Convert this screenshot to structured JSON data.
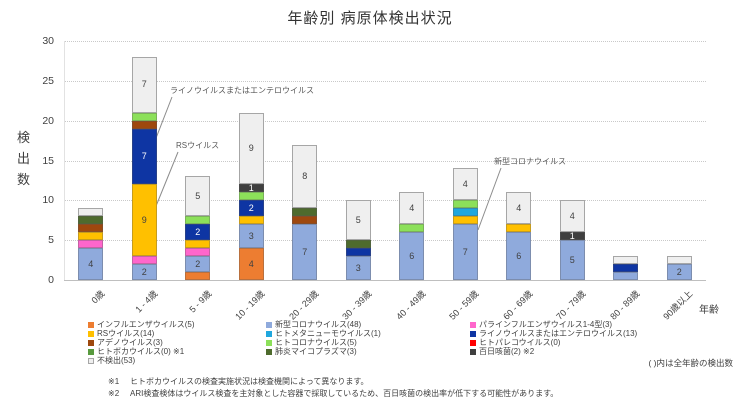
{
  "chart_data": {
    "type": "bar",
    "stacked": true,
    "title": "年齢別 病原体検出状況",
    "xlabel": "年齢",
    "ylabel": "検出数",
    "ylim": [
      0,
      30
    ],
    "yticks": [
      0,
      5,
      10,
      15,
      20,
      25,
      30
    ],
    "grid": "horizontal-dotted",
    "categories": [
      "0歳",
      "1 - 4歳",
      "5 - 9歳",
      "10 - 19歳",
      "20 - 29歳",
      "30 - 39歳",
      "40 - 49歳",
      "50 - 59歳",
      "60 - 69歳",
      "70 - 79歳",
      "80 - 89歳",
      "90歳以上"
    ],
    "series": [
      {
        "name": "インフルエンザウイルス",
        "color": "#ED7D31",
        "values": [
          0,
          0,
          1,
          4,
          0,
          0,
          0,
          0,
          0,
          0,
          0,
          0
        ]
      },
      {
        "name": "新型コロナウイルス",
        "color": "#8FAADC",
        "values": [
          4,
          2,
          2,
          3,
          7,
          3,
          6,
          7,
          6,
          5,
          1,
          2
        ]
      },
      {
        "name": "パラインフルエンザウイルス1-4型",
        "color": "#FF66CC",
        "values": [
          1,
          1,
          1,
          0,
          0,
          0,
          0,
          0,
          0,
          0,
          0,
          0
        ]
      },
      {
        "name": "RSウイルス",
        "color": "#FFC000",
        "values": [
          1,
          9,
          1,
          1,
          0,
          0,
          0,
          1,
          1,
          0,
          0,
          0
        ]
      },
      {
        "name": "ライノウイルスまたはエンテロウイルス",
        "color": "#0E35A3",
        "text": "#FFFFFF",
        "values": [
          0,
          7,
          2,
          2,
          0,
          1,
          0,
          0,
          0,
          0,
          1,
          0
        ]
      },
      {
        "name": "ヒトメタニューモウイルス",
        "color": "#20A7DE",
        "values": [
          0,
          0,
          0,
          0,
          0,
          0,
          0,
          1,
          0,
          0,
          0,
          0
        ]
      },
      {
        "name": "アデノウイルス",
        "color": "#9E480E",
        "text": "#FFFFFF",
        "values": [
          1,
          1,
          0,
          0,
          1,
          0,
          0,
          0,
          0,
          0,
          0,
          0
        ]
      },
      {
        "name": "ヒトコロナウイルス",
        "color": "#8CE05A",
        "values": [
          0,
          1,
          1,
          1,
          0,
          0,
          1,
          1,
          0,
          0,
          0,
          0
        ]
      },
      {
        "name": "肺炎マイコプラズマ",
        "color": "#4E6B2D",
        "text": "#FFFFFF",
        "values": [
          1,
          0,
          0,
          0,
          1,
          1,
          0,
          0,
          0,
          0,
          0,
          0
        ]
      },
      {
        "name": "百日咳菌",
        "color": "#3F3F3F",
        "text": "#FFFFFF",
        "always_label": true,
        "values": [
          0,
          0,
          0,
          1,
          0,
          0,
          0,
          0,
          0,
          1,
          0,
          0
        ]
      },
      {
        "name": "不検出",
        "color": "#EFEFEF",
        "border": "#A6A6A6",
        "values": [
          1,
          7,
          5,
          9,
          8,
          5,
          4,
          4,
          4,
          4,
          1,
          1
        ]
      }
    ],
    "legend": {
      "position": "bottom",
      "columns": [
        [
          {
            "label": "インフルエンザウイルス(5)",
            "color": "#ED7D31"
          },
          {
            "label": "RSウイルス(14)",
            "color": "#FFC000"
          },
          {
            "label": "アデノウイルス(3)",
            "color": "#9E480E"
          },
          {
            "label": "ヒトボカウイルス(0) ※1",
            "color": "#589A3E"
          },
          {
            "label": "不検出(53)",
            "color": "#EFEFEF",
            "border": "#A6A6A6"
          }
        ],
        [
          {
            "label": "新型コロナウイルス(48)",
            "color": "#8FAADC"
          },
          {
            "label": "ヒトメタニューモウイルス(1)",
            "color": "#20A7DE"
          },
          {
            "label": "ヒトコロナウイルス(5)",
            "color": "#8CE05A"
          },
          {
            "label": "肺炎マイコプラズマ(3)",
            "color": "#4E6B2D"
          }
        ],
        [
          {
            "label": "パラインフルエンザウイルス1-4型(3)",
            "color": "#FF66CC"
          },
          {
            "label": "ライノウイルスまたはエンテロウイルス(13)",
            "color": "#0E35A3"
          },
          {
            "label": "ヒトパレコウイルス(0)",
            "color": "#FF0000"
          },
          {
            "label": "百日咳菌(2) ※2",
            "color": "#3F3F3F"
          }
        ]
      ]
    },
    "annotations": [
      {
        "text": "ライノウイルスまたはエンテロウイルス",
        "x": 170,
        "y": 85,
        "line": [
          172,
          97,
          151,
          151
        ]
      },
      {
        "text": "RSウイルス",
        "x": 176,
        "y": 140,
        "line": [
          178,
          152,
          154,
          211
        ]
      },
      {
        "text": "新型コロナウイルス",
        "x": 494,
        "y": 156,
        "line": [
          501,
          168,
          478,
          230
        ]
      }
    ],
    "note": "( )内は全年齢の検出数",
    "footnotes": [
      {
        "marker": "※1",
        "text": "ヒトボカウイルスの検査実施状況は検査機関によって異なります。"
      },
      {
        "marker": "※2",
        "text": "ARI検査検体はウイルス検査を主対象とした容器で採取しているため、百日咳菌の検出率が低下する可能性があります。"
      }
    ]
  }
}
